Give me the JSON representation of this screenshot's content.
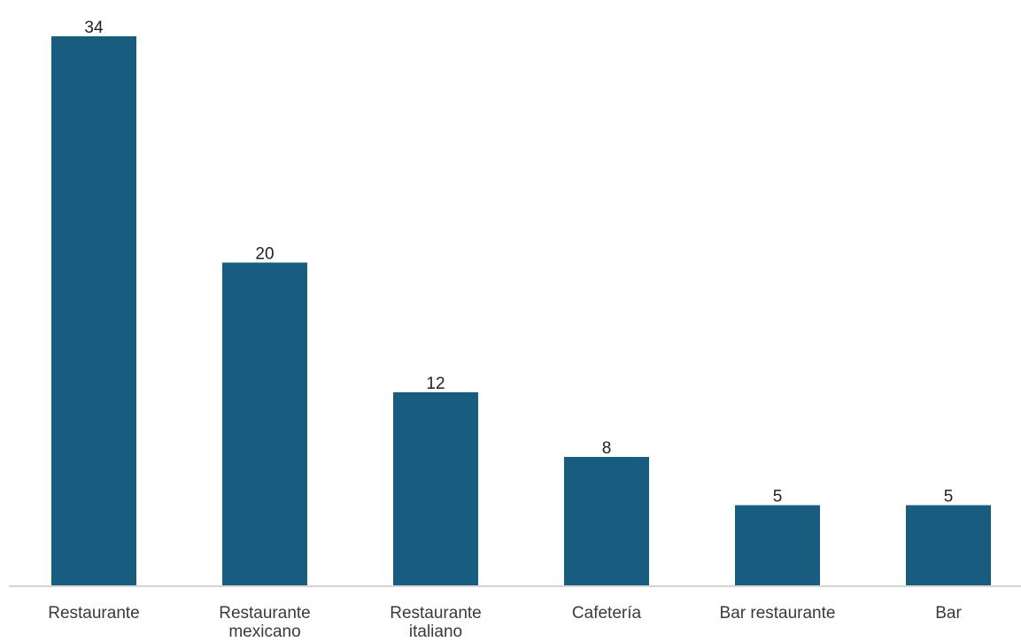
{
  "chart_data": {
    "type": "bar",
    "categories": [
      [
        "Restaurante"
      ],
      [
        "Restaurante",
        "mexicano"
      ],
      [
        "Restaurante",
        "italiano"
      ],
      [
        "Cafetería"
      ],
      [
        "Bar restaurante"
      ],
      [
        "Bar"
      ]
    ],
    "values": [
      34,
      20,
      12,
      8,
      5,
      5
    ],
    "data_labels": [
      "34",
      "20",
      "12",
      "8",
      "5",
      "5"
    ],
    "title": "",
    "xlabel": "",
    "ylabel": "",
    "ylim": [
      0,
      34
    ],
    "grid": false,
    "legend": "none",
    "colors": {
      "bar": "#185d7f",
      "axis": "#d4d4d4"
    }
  }
}
